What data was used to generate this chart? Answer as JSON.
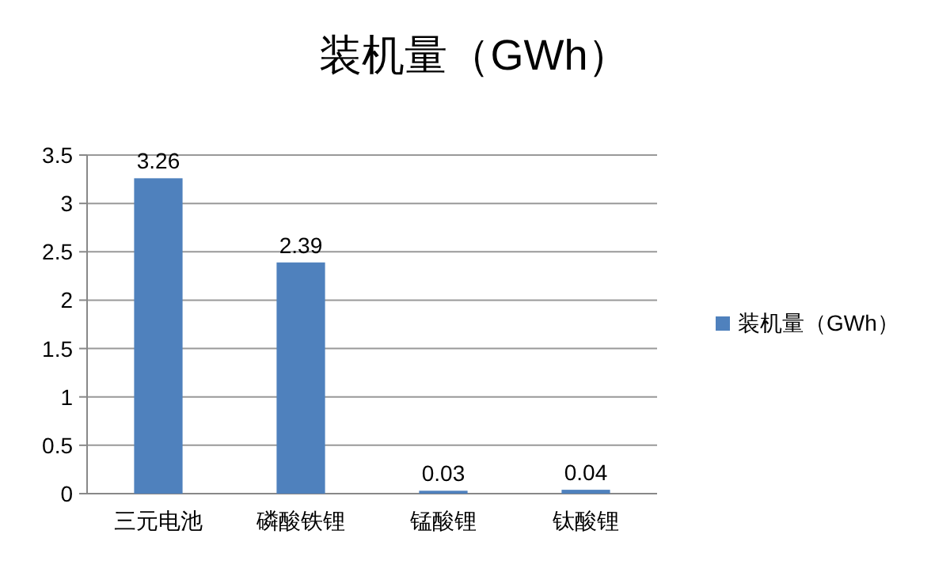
{
  "chart_data": {
    "type": "bar",
    "title": "装机量（GWh）",
    "categories": [
      "三元电池",
      "磷酸铁锂",
      "锰酸锂",
      "钛酸锂"
    ],
    "series": [
      {
        "name": "装机量（GWh）",
        "color": "#4f81bd",
        "values": [
          3.26,
          2.39,
          0.03,
          0.04
        ]
      }
    ],
    "ylim": [
      0,
      3.5
    ],
    "yticks": [
      0,
      0.5,
      1,
      1.5,
      2,
      2.5,
      3,
      3.5
    ],
    "grid": "y",
    "legend": "right",
    "data_labels": true
  }
}
